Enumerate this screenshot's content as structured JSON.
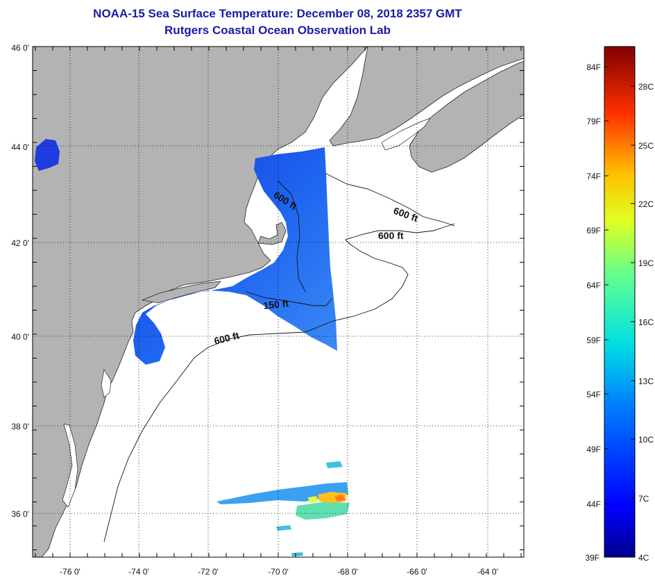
{
  "title_line1": "NOAA-15 Sea Surface Temperature:  December 08, 2018 2357 GMT",
  "title_line2": "Rutgers Coastal Ocean Observation Lab",
  "lat_labels": [
    "46 0'",
    "44 0'",
    "42 0'",
    "40 0'",
    "38 0'",
    "36 0'"
  ],
  "lon_labels": [
    "-76 0'",
    "-74 0'",
    "-72 0'",
    "-70 0'",
    "-68 0'",
    "-66 0'",
    "-64 0'"
  ],
  "contour_labels": [
    "600 ft",
    "600 ft",
    "600 ft",
    "150 ft",
    "600 ft"
  ],
  "colorbar": {
    "fahrenheit": [
      "84F",
      "79F",
      "74F",
      "69F",
      "64F",
      "59F",
      "54F",
      "49F",
      "44F",
      "39F"
    ],
    "celsius": [
      "28C",
      "25C",
      "22C",
      "19C",
      "16C",
      "13C",
      "10C",
      "7C",
      "4C"
    ]
  },
  "colors": {
    "title": "#1a1aa6",
    "land": "#b3b3b3",
    "ocean": "#ffffff",
    "sst_dominant": "#1e5cf0"
  }
}
